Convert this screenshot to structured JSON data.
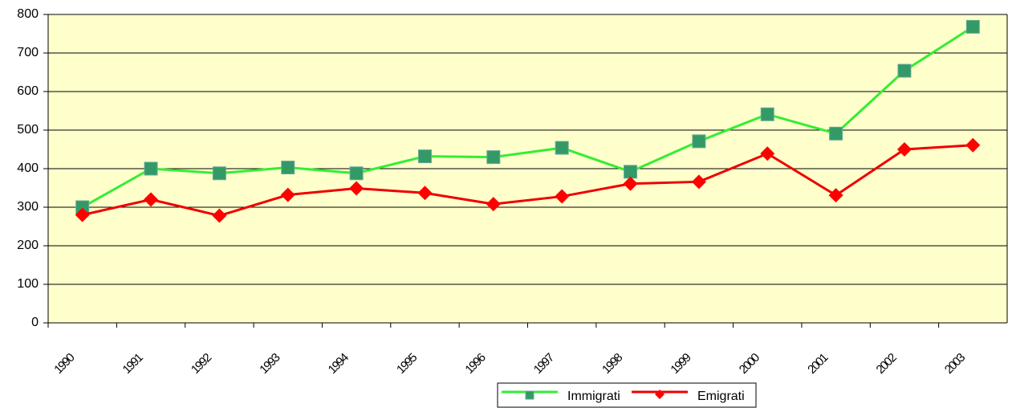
{
  "chart_data": {
    "type": "line",
    "categories": [
      "1990",
      "1991",
      "1992",
      "1993",
      "1994",
      "1995",
      "1996",
      "1997",
      "1998",
      "1999",
      "2000",
      "2001",
      "2002",
      "2003"
    ],
    "series": [
      {
        "name": "Immigrati",
        "color": "#33ee33",
        "marker_color": "#339966",
        "marker": "square",
        "values": [
          300,
          400,
          388,
          403,
          388,
          432,
          430,
          454,
          392,
          471,
          541,
          491,
          654,
          768
        ]
      },
      {
        "name": "Emigrati",
        "color": "#ee0000",
        "marker_color": "#ff0000",
        "marker": "diamond",
        "values": [
          280,
          320,
          278,
          332,
          349,
          337,
          308,
          328,
          361,
          366,
          439,
          331,
          450,
          461
        ]
      }
    ],
    "ylim": [
      0,
      800
    ],
    "yticks": [
      0,
      100,
      200,
      300,
      400,
      500,
      600,
      700,
      800
    ],
    "grid": true,
    "legend": "bottom"
  }
}
